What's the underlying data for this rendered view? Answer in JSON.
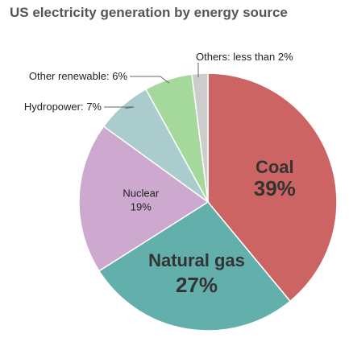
{
  "chart_data": {
    "type": "pie",
    "title": "US electricity generation by energy source",
    "slices": [
      {
        "name": "Coal",
        "value": 39,
        "value_label": "39%",
        "color": "#cd6464"
      },
      {
        "name": "Natural gas",
        "value": 27,
        "value_label": "27%",
        "color": "#63afab"
      },
      {
        "name": "Nuclear",
        "value": 19,
        "value_label": "19%",
        "color": "#cda8cf"
      },
      {
        "name": "Hydropower",
        "value": 7,
        "value_label": "7%",
        "color": "#abcccd",
        "callout": "Hydropower: 7%"
      },
      {
        "name": "Other renewable",
        "value": 6,
        "value_label": "6%",
        "color": "#a5d99b",
        "callout": "Other renewable: 6%"
      },
      {
        "name": "Others",
        "value": 2,
        "value_label": "less than 2%",
        "color": "#cccccc",
        "callout": "Others: less than 2%"
      }
    ]
  }
}
